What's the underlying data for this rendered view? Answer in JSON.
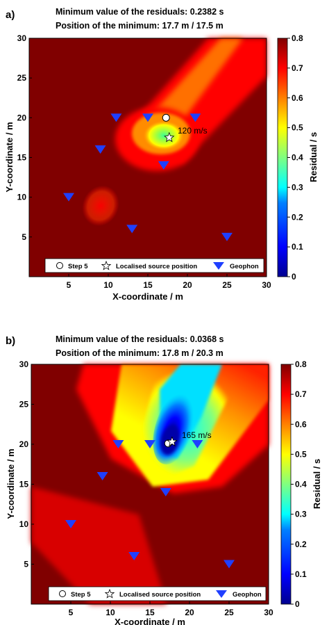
{
  "colors": {
    "scale": [
      "#00008f",
      "#0000ff",
      "#0080ff",
      "#00ffff",
      "#80ff80",
      "#ffff00",
      "#ff8000",
      "#ff0000",
      "#800000"
    ],
    "geophone": "#1f3fff"
  },
  "legend": {
    "step_label": "Step 5",
    "source_label": "Localised source position",
    "geophone_label": "Geophon"
  },
  "chart_data": [
    {
      "type": "heatmap",
      "panel": "a)",
      "title_line1": "Minimum value of the residuals: 0.2382 s",
      "title_line2": "Position of the minimum: 17.7 m / 17.5 m",
      "xlabel": "X-coordinate / m",
      "ylabel": "Y-coordinate / m",
      "colorbar_label": "Residual / s",
      "xlim": [
        0,
        30
      ],
      "ylim": [
        0,
        30
      ],
      "xticks": [
        "5",
        "10",
        "15",
        "20",
        "25",
        "30"
      ],
      "yticks": [
        "5",
        "10",
        "15",
        "20",
        "25",
        "30"
      ],
      "colorbar_range": [
        0,
        0.8
      ],
      "colorbar_ticks": [
        "0",
        "0.1",
        "0.2",
        "0.3",
        "0.4",
        "0.5",
        "0.6",
        "0.7",
        "0.8"
      ],
      "minimum_residual": 0.2382,
      "minimum_position": [
        17.7,
        17.5
      ],
      "step5_position": [
        17.3,
        20.0
      ],
      "velocity_label": "120 m/s",
      "geophones": [
        [
          11,
          20
        ],
        [
          15,
          20
        ],
        [
          21,
          20
        ],
        [
          9,
          16
        ],
        [
          17,
          14
        ],
        [
          5,
          10
        ],
        [
          13,
          6
        ],
        [
          25,
          5
        ]
      ]
    },
    {
      "type": "heatmap",
      "panel": "b)",
      "title_line1": "Minimum value of the residuals: 0.0368 s",
      "title_line2": "Position of the minimum: 17.8 m / 20.3 m",
      "xlabel": "X-coordinate / m",
      "ylabel": "Y-coordinate / m",
      "colorbar_label": "Residual / s",
      "xlim": [
        0,
        30
      ],
      "ylim": [
        0,
        30
      ],
      "xticks": [
        "5",
        "10",
        "15",
        "20",
        "25",
        "30"
      ],
      "yticks": [
        "5",
        "10",
        "15",
        "20",
        "25",
        "30"
      ],
      "colorbar_range": [
        0,
        0.8
      ],
      "colorbar_ticks": [
        "0",
        "0.1",
        "0.2",
        "0.3",
        "0.4",
        "0.5",
        "0.6",
        "0.7",
        "0.8"
      ],
      "minimum_residual": 0.0368,
      "minimum_position": [
        17.8,
        20.3
      ],
      "step5_position": [
        17.3,
        20.1
      ],
      "velocity_label": "165 m/s",
      "geophones": [
        [
          11,
          20
        ],
        [
          15,
          20
        ],
        [
          21,
          20
        ],
        [
          9,
          16
        ],
        [
          17,
          14
        ],
        [
          5,
          10
        ],
        [
          13,
          6
        ],
        [
          25,
          5
        ]
      ]
    }
  ]
}
